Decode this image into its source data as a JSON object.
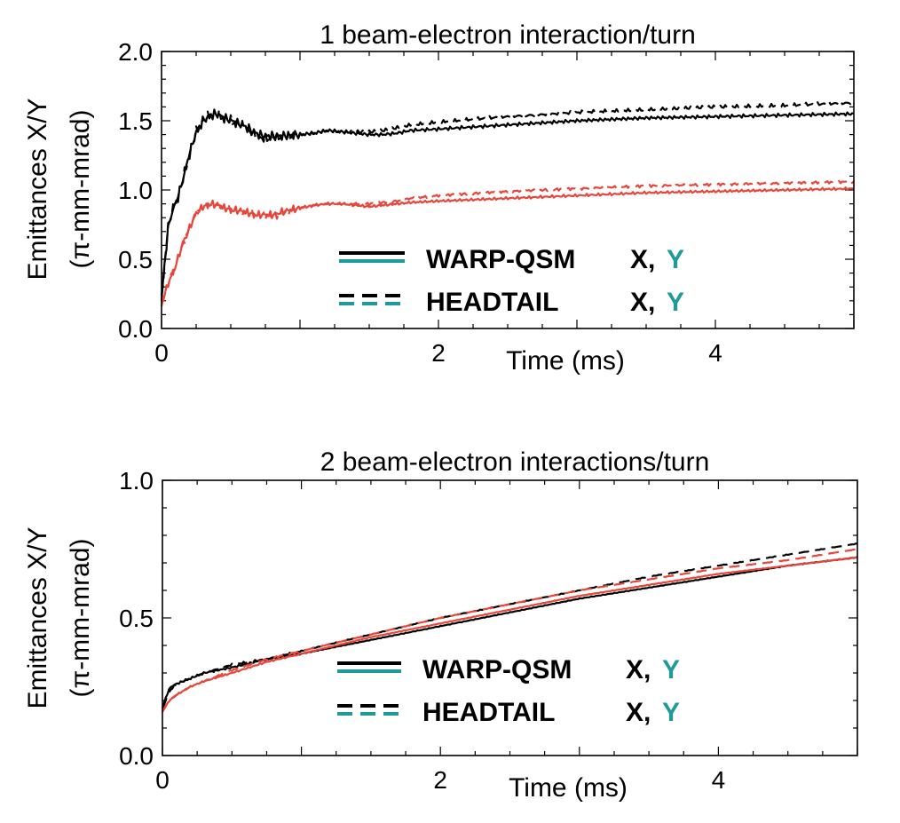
{
  "colors": {
    "x_series": "#000000",
    "y_series": "#e8463a",
    "legend_y": "#1f9a9a",
    "axis": "#000000"
  },
  "chart_data": [
    {
      "type": "line",
      "title": "1 beam-electron interaction/turn",
      "xlabel": "Time (ms)",
      "ylabel": "Emittances X/Y",
      "ylabel2": "(π-mm-mrad)",
      "xlim": [
        0,
        5
      ],
      "ylim": [
        0,
        2
      ],
      "xticks": [
        {
          "v": 0,
          "label": "0"
        },
        {
          "v": 2,
          "label": "2"
        },
        {
          "v": 4,
          "label": "4"
        }
      ],
      "yticks": [
        {
          "v": 0,
          "label": "0.0"
        },
        {
          "v": 0.5,
          "label": "0.5"
        },
        {
          "v": 1,
          "label": "1.0"
        },
        {
          "v": 1.5,
          "label": "1.5"
        },
        {
          "v": 2,
          "label": "2.0"
        }
      ],
      "legend": [
        {
          "text": "WARP-QSM",
          "x_label": "X,",
          "y_label": "Y",
          "style": "solid"
        },
        {
          "text": "HEADTAIL",
          "x_label": "X,",
          "y_label": "Y",
          "style": "dashed"
        }
      ],
      "series": [
        {
          "key": "warp_x",
          "color": "x",
          "dash": false,
          "jitter": 0.02,
          "x": [
            0,
            0.02,
            0.05,
            0.08,
            0.12,
            0.16,
            0.2,
            0.25,
            0.3,
            0.35,
            0.4,
            0.45,
            0.5,
            0.55,
            0.6,
            0.65,
            0.7,
            0.75,
            0.8,
            0.9,
            1.0,
            1.1,
            1.2,
            1.3,
            1.4,
            1.5,
            1.6,
            1.7,
            1.8,
            2.0,
            2.5,
            3.0,
            3.5,
            4.0,
            4.5,
            5.0
          ],
          "y": [
            0.2,
            0.45,
            0.75,
            0.85,
            0.95,
            1.1,
            1.25,
            1.42,
            1.5,
            1.54,
            1.55,
            1.52,
            1.5,
            1.48,
            1.46,
            1.43,
            1.4,
            1.39,
            1.39,
            1.39,
            1.4,
            1.41,
            1.43,
            1.42,
            1.41,
            1.4,
            1.4,
            1.41,
            1.43,
            1.44,
            1.47,
            1.5,
            1.52,
            1.53,
            1.54,
            1.55
          ]
        },
        {
          "key": "headtail_x",
          "color": "x",
          "dash": true,
          "jitter": 0.02,
          "x": [
            0,
            0.02,
            0.05,
            0.08,
            0.12,
            0.16,
            0.2,
            0.25,
            0.3,
            0.35,
            0.4,
            0.45,
            0.5,
            0.55,
            0.6,
            0.65,
            0.7,
            0.75,
            0.8,
            0.9,
            1.0,
            1.1,
            1.2,
            1.3,
            1.4,
            1.5,
            1.6,
            1.7,
            1.8,
            2.0,
            2.5,
            3.0,
            3.5,
            4.0,
            4.5,
            5.0
          ],
          "y": [
            0.2,
            0.45,
            0.75,
            0.85,
            0.95,
            1.1,
            1.25,
            1.42,
            1.5,
            1.54,
            1.55,
            1.52,
            1.5,
            1.48,
            1.45,
            1.41,
            1.38,
            1.37,
            1.38,
            1.39,
            1.4,
            1.41,
            1.43,
            1.42,
            1.42,
            1.42,
            1.43,
            1.45,
            1.47,
            1.49,
            1.53,
            1.56,
            1.58,
            1.6,
            1.61,
            1.63
          ]
        },
        {
          "key": "warp_y",
          "color": "y",
          "dash": false,
          "jitter": 0.015,
          "x": [
            0,
            0.05,
            0.1,
            0.15,
            0.2,
            0.25,
            0.3,
            0.35,
            0.4,
            0.45,
            0.5,
            0.6,
            0.7,
            0.8,
            0.9,
            1.0,
            1.1,
            1.2,
            1.3,
            1.4,
            1.5,
            1.6,
            1.7,
            1.8,
            2.0,
            2.5,
            3.0,
            3.5,
            4.0,
            4.5,
            5.0
          ],
          "y": [
            0.18,
            0.33,
            0.45,
            0.6,
            0.72,
            0.83,
            0.88,
            0.9,
            0.89,
            0.87,
            0.86,
            0.84,
            0.82,
            0.82,
            0.85,
            0.87,
            0.89,
            0.9,
            0.9,
            0.89,
            0.88,
            0.89,
            0.9,
            0.91,
            0.92,
            0.94,
            0.96,
            0.98,
            0.99,
            1.0,
            1.01
          ]
        },
        {
          "key": "headtail_y",
          "color": "y",
          "dash": true,
          "jitter": 0.015,
          "x": [
            0,
            0.05,
            0.1,
            0.15,
            0.2,
            0.25,
            0.3,
            0.35,
            0.4,
            0.45,
            0.5,
            0.6,
            0.7,
            0.8,
            0.9,
            1.0,
            1.1,
            1.2,
            1.3,
            1.4,
            1.5,
            1.6,
            1.7,
            1.8,
            2.0,
            2.5,
            3.0,
            3.5,
            4.0,
            4.5,
            5.0
          ],
          "y": [
            0.18,
            0.33,
            0.45,
            0.6,
            0.72,
            0.83,
            0.88,
            0.9,
            0.89,
            0.87,
            0.86,
            0.84,
            0.82,
            0.81,
            0.84,
            0.87,
            0.89,
            0.9,
            0.9,
            0.9,
            0.9,
            0.91,
            0.92,
            0.94,
            0.96,
            0.99,
            1.01,
            1.03,
            1.04,
            1.05,
            1.06
          ]
        }
      ]
    },
    {
      "type": "line",
      "title": "2 beam-electron interactions/turn",
      "xlabel": "Time (ms)",
      "ylabel": "Emittances X/Y",
      "ylabel2": "(π-mm-mrad)",
      "xlim": [
        0,
        5
      ],
      "ylim": [
        0,
        1
      ],
      "xticks": [
        {
          "v": 0,
          "label": "0"
        },
        {
          "v": 2,
          "label": "2"
        },
        {
          "v": 4,
          "label": "4"
        }
      ],
      "yticks": [
        {
          "v": 0,
          "label": "0.0"
        },
        {
          "v": 0.5,
          "label": "0.5"
        },
        {
          "v": 1,
          "label": "1.0"
        }
      ],
      "legend": [
        {
          "text": "WARP-QSM",
          "x_label": "X,",
          "y_label": "Y",
          "style": "solid"
        },
        {
          "text": "HEADTAIL",
          "x_label": "X,",
          "y_label": "Y",
          "style": "dashed"
        }
      ],
      "series": [
        {
          "key": "warp_x",
          "color": "x",
          "dash": false,
          "jitter": 0.004,
          "x": [
            0,
            0.03,
            0.06,
            0.1,
            0.2,
            0.3,
            0.5,
            0.75,
            1.0,
            1.5,
            2.0,
            2.5,
            3.0,
            3.5,
            4.0,
            4.5,
            5.0
          ],
          "y": [
            0.17,
            0.22,
            0.25,
            0.26,
            0.28,
            0.3,
            0.32,
            0.35,
            0.37,
            0.42,
            0.47,
            0.52,
            0.57,
            0.61,
            0.65,
            0.69,
            0.72
          ]
        },
        {
          "key": "headtail_x",
          "color": "x",
          "dash": true,
          "jitter": 0.004,
          "x": [
            0,
            0.03,
            0.06,
            0.1,
            0.2,
            0.3,
            0.5,
            0.75,
            1.0,
            1.5,
            2.0,
            2.5,
            3.0,
            3.5,
            4.0,
            4.5,
            5.0
          ],
          "y": [
            0.17,
            0.21,
            0.24,
            0.26,
            0.28,
            0.3,
            0.33,
            0.35,
            0.38,
            0.44,
            0.5,
            0.55,
            0.6,
            0.65,
            0.69,
            0.73,
            0.77
          ]
        },
        {
          "key": "warp_y",
          "color": "y",
          "dash": false,
          "jitter": 0.003,
          "x": [
            0,
            0.05,
            0.1,
            0.2,
            0.3,
            0.5,
            0.75,
            1.0,
            1.5,
            2.0,
            2.5,
            3.0,
            3.5,
            4.0,
            4.5,
            5.0
          ],
          "y": [
            0.16,
            0.2,
            0.22,
            0.25,
            0.27,
            0.3,
            0.34,
            0.37,
            0.43,
            0.48,
            0.53,
            0.58,
            0.62,
            0.66,
            0.69,
            0.72
          ]
        },
        {
          "key": "headtail_y",
          "color": "y",
          "dash": true,
          "jitter": 0.003,
          "x": [
            0,
            0.05,
            0.1,
            0.2,
            0.3,
            0.5,
            0.75,
            1.0,
            1.5,
            2.0,
            2.5,
            3.0,
            3.5,
            4.0,
            4.5,
            5.0
          ],
          "y": [
            0.16,
            0.2,
            0.22,
            0.25,
            0.27,
            0.31,
            0.35,
            0.38,
            0.44,
            0.5,
            0.55,
            0.6,
            0.64,
            0.68,
            0.71,
            0.75
          ]
        }
      ]
    }
  ]
}
